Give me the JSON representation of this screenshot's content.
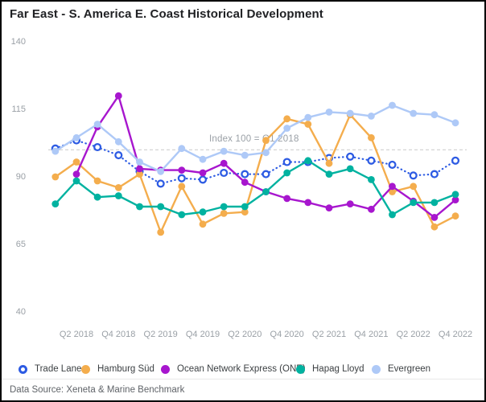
{
  "title": "Far East - S. America E. Coast Historical Development",
  "footer": {
    "source": "Data Source: Xeneta & Marine Benchmark"
  },
  "chart_data": {
    "type": "line",
    "title": "Far East - S. America E. Coast Historical Development",
    "x_tick_labels": [
      "Q2 2018",
      "Q4 2018",
      "Q2 2019",
      "Q4 2019",
      "Q2 2020",
      "Q4 2020",
      "Q2 2021",
      "Q4 2021",
      "Q2 2022",
      "Q4 2022"
    ],
    "quarters": [
      "Q1 2018",
      "Q2 2018",
      "Q3 2018",
      "Q4 2018",
      "Q1 2019",
      "Q2 2019",
      "Q3 2019",
      "Q4 2019",
      "Q1 2020",
      "Q2 2020",
      "Q3 2020",
      "Q4 2020",
      "Q1 2021",
      "Q2 2021",
      "Q3 2021",
      "Q4 2021",
      "Q1 2022",
      "Q2 2022",
      "Q3 2022",
      "Q4 2022"
    ],
    "y_ticks": [
      140,
      115,
      90,
      65,
      40
    ],
    "ylim": [
      40,
      140
    ],
    "grid": "off",
    "legend_position": "bottom",
    "reference_line": {
      "label": "Index 100 = Q1 2018",
      "value": 100,
      "line_color": "#d4d4d4"
    },
    "series": [
      {
        "name": "Trade Lane",
        "color": "#2d5be3",
        "line_style": "dotted",
        "marker": "open",
        "values": [
          100.5,
          103.5,
          101,
          98,
          92,
          87.5,
          89.5,
          89,
          91.5,
          91,
          91,
          95.5,
          95.5,
          97,
          97.5,
          96,
          94.5,
          90.5,
          91,
          96
        ]
      },
      {
        "name": "Hamburg Süd",
        "color": "#f4ad4d",
        "line_style": "solid",
        "marker": "filled",
        "values": [
          90,
          95.5,
          88.5,
          86,
          91,
          69.5,
          86.5,
          72.5,
          76.5,
          77,
          103.5,
          111.5,
          109.5,
          95,
          113,
          104.5,
          84.5,
          86.5,
          71.5,
          75.5
        ]
      },
      {
        "name": "Ocean Network Express (ONE)",
        "color": "#a716ce",
        "line_style": "solid",
        "marker": "filled",
        "values": [
          null,
          91,
          108.5,
          120,
          93,
          92.5,
          92.5,
          91.5,
          95,
          88,
          84.5,
          82,
          80.5,
          78.5,
          80,
          78,
          86.5,
          81,
          75,
          81.5
        ]
      },
      {
        "name": "Hapag Lloyd",
        "color": "#00b2a0",
        "line_style": "solid",
        "marker": "filled",
        "values": [
          80,
          88.5,
          82.5,
          83,
          79,
          79,
          76,
          77,
          79,
          79,
          84.5,
          91.5,
          96,
          91,
          93,
          89,
          76,
          80.5,
          80.5,
          83.5
        ]
      },
      {
        "name": "Evergreen",
        "color": "#aec9f7",
        "line_style": "solid",
        "marker": "filled",
        "values": [
          99.5,
          104.5,
          109.5,
          103,
          95.5,
          92,
          100.5,
          96.5,
          99.5,
          98,
          99,
          108,
          112,
          114,
          113.5,
          112.5,
          116.5,
          113.5,
          113,
          110
        ]
      }
    ]
  }
}
